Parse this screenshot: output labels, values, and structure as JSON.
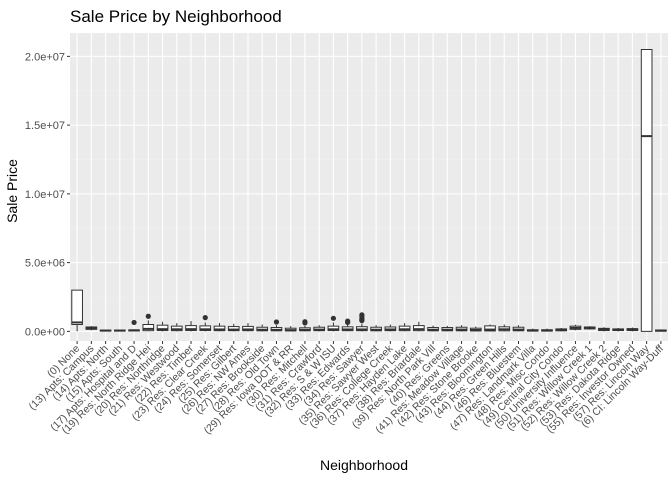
{
  "chart_data": {
    "type": "boxplot",
    "title": "Sale Price by Neighborhood",
    "xlabel": "Neighborhood",
    "ylabel": "Sale Price",
    "ylim": [
      -700000,
      21700000
    ],
    "y_ticks": [
      0,
      5000000,
      10000000,
      15000000,
      20000000
    ],
    "y_tick_labels": [
      "0.0e+00",
      "5.0e+06",
      "1.0e+07",
      "1.5e+07",
      "2.0e+07"
    ],
    "grid": true,
    "legend": "none",
    "categories": [
      "(0) None",
      "(13) Apts: Campus",
      "(14) Apts: North",
      "(15) Apts: South",
      "(17) Apts: Hospital and D",
      "(19) Res: North Ridge Hei",
      "(20) Res: Northridge",
      "(21) Res: Westwood",
      "(22) Res: Timber",
      "(23) Res: Clear Creek",
      "(24) Res: Somerset",
      "(25) Res: Gilbert",
      "(26) Res: NW Ames",
      "(27) Res: Brookside",
      "(28) Res: Old Town",
      "(29) Res: Iowa DOT & RR",
      "(30) Res: Mitchell",
      "(31) Res: Crawford",
      "(32) Res: S & W ISU",
      "(33) Res: Edwards",
      "(34) Res: Sawyer",
      "(35) Res: Sawyer West",
      "(36) Res: College Creek",
      "(37) Res: Hayden Lake",
      "(38) Res: Briardale",
      "(39) Res: North Park Vill",
      "(40) Res: Greens",
      "(41) Res: Meadow Village",
      "(42) Res: Stone Brooke",
      "(43) Res: Bloomington",
      "(44) Res: Green Hills",
      "(46) Res: Bluestem",
      "(47) Res: Landmark Villa",
      "(48) Res: Misc Condo",
      "(49) Central City Condo",
      "(50) University Influence",
      "(51) Res: Willow Creek 1",
      "(52) Res: Willow Creek 2",
      "(53) Res: Dakota Ridge",
      "(55) Res: Investor Owned",
      "(57) Res: Lincoln Way",
      "(6) CI: Lincoln Way-Duff"
    ],
    "boxes": [
      {
        "q1": 500000,
        "median": 650000,
        "q3": 3000000,
        "whisker_low": 0,
        "whisker_high": 3000000,
        "outliers": []
      },
      {
        "q1": 150000,
        "median": 240000,
        "q3": 320000,
        "whisker_low": 80000,
        "whisker_high": 380000,
        "outliers": []
      },
      {
        "q1": 20000,
        "median": 60000,
        "q3": 90000,
        "whisker_low": 0,
        "whisker_high": 120000,
        "outliers": []
      },
      {
        "q1": 20000,
        "median": 60000,
        "q3": 90000,
        "whisker_low": 0,
        "whisker_high": 120000,
        "outliers": []
      },
      {
        "q1": 30000,
        "median": 80000,
        "q3": 100000,
        "whisker_low": 10000,
        "whisker_high": 150000,
        "outliers": [
          650000
        ]
      },
      {
        "q1": 50000,
        "median": 180000,
        "q3": 500000,
        "whisker_low": 0,
        "whisker_high": 800000,
        "outliers": [
          1100000
        ]
      },
      {
        "q1": 60000,
        "median": 160000,
        "q3": 450000,
        "whisker_low": 0,
        "whisker_high": 700000,
        "outliers": []
      },
      {
        "q1": 50000,
        "median": 150000,
        "q3": 380000,
        "whisker_low": 0,
        "whisker_high": 600000,
        "outliers": []
      },
      {
        "q1": 60000,
        "median": 160000,
        "q3": 420000,
        "whisker_low": 0,
        "whisker_high": 750000,
        "outliers": []
      },
      {
        "q1": 60000,
        "median": 150000,
        "q3": 400000,
        "whisker_low": 0,
        "whisker_high": 650000,
        "outliers": [
          1000000
        ]
      },
      {
        "q1": 50000,
        "median": 140000,
        "q3": 380000,
        "whisker_low": 0,
        "whisker_high": 600000,
        "outliers": []
      },
      {
        "q1": 50000,
        "median": 130000,
        "q3": 350000,
        "whisker_low": 0,
        "whisker_high": 550000,
        "outliers": []
      },
      {
        "q1": 50000,
        "median": 140000,
        "q3": 360000,
        "whisker_low": 0,
        "whisker_high": 600000,
        "outliers": []
      },
      {
        "q1": 40000,
        "median": 120000,
        "q3": 300000,
        "whisker_low": 0,
        "whisker_high": 500000,
        "outliers": []
      },
      {
        "q1": 40000,
        "median": 110000,
        "q3": 280000,
        "whisker_low": 0,
        "whisker_high": 450000,
        "outliers": [
          680000
        ]
      },
      {
        "q1": 30000,
        "median": 90000,
        "q3": 230000,
        "whisker_low": 0,
        "whisker_high": 380000,
        "outliers": []
      },
      {
        "q1": 40000,
        "median": 110000,
        "q3": 260000,
        "whisker_low": 0,
        "whisker_high": 400000,
        "outliers": [
          620000,
          700000
        ]
      },
      {
        "q1": 50000,
        "median": 130000,
        "q3": 300000,
        "whisker_low": 0,
        "whisker_high": 450000,
        "outliers": []
      },
      {
        "q1": 60000,
        "median": 150000,
        "q3": 380000,
        "whisker_low": 0,
        "whisker_high": 650000,
        "outliers": [
          950000
        ]
      },
      {
        "q1": 50000,
        "median": 140000,
        "q3": 330000,
        "whisker_low": 0,
        "whisker_high": 500000,
        "outliers": [
          650000,
          750000
        ]
      },
      {
        "q1": 50000,
        "median": 140000,
        "q3": 340000,
        "whisker_low": 0,
        "whisker_high": 550000,
        "outliers": [
          780000,
          850000,
          950000,
          1100000,
          1200000
        ]
      },
      {
        "q1": 40000,
        "median": 120000,
        "q3": 300000,
        "whisker_low": 0,
        "whisker_high": 450000,
        "outliers": []
      },
      {
        "q1": 50000,
        "median": 140000,
        "q3": 320000,
        "whisker_low": 0,
        "whisker_high": 500000,
        "outliers": []
      },
      {
        "q1": 50000,
        "median": 150000,
        "q3": 380000,
        "whisker_low": 0,
        "whisker_high": 600000,
        "outliers": []
      },
      {
        "q1": 50000,
        "median": 160000,
        "q3": 420000,
        "whisker_low": 0,
        "whisker_high": 700000,
        "outliers": []
      },
      {
        "q1": 40000,
        "median": 120000,
        "q3": 280000,
        "whisker_low": 0,
        "whisker_high": 420000,
        "outliers": []
      },
      {
        "q1": 40000,
        "median": 120000,
        "q3": 280000,
        "whisker_low": 0,
        "whisker_high": 400000,
        "outliers": []
      },
      {
        "q1": 40000,
        "median": 130000,
        "q3": 300000,
        "whisker_low": 0,
        "whisker_high": 450000,
        "outliers": []
      },
      {
        "q1": 30000,
        "median": 100000,
        "q3": 230000,
        "whisker_low": 0,
        "whisker_high": 350000,
        "outliers": []
      },
      {
        "q1": 30000,
        "median": 130000,
        "q3": 400000,
        "whisker_low": 0,
        "whisker_high": 500000,
        "outliers": []
      },
      {
        "q1": 40000,
        "median": 150000,
        "q3": 330000,
        "whisker_low": 0,
        "whisker_high": 500000,
        "outliers": []
      },
      {
        "q1": 40000,
        "median": 130000,
        "q3": 300000,
        "whisker_low": 0,
        "whisker_high": 450000,
        "outliers": []
      },
      {
        "q1": 20000,
        "median": 60000,
        "q3": 120000,
        "whisker_low": 0,
        "whisker_high": 200000,
        "outliers": []
      },
      {
        "q1": 20000,
        "median": 60000,
        "q3": 120000,
        "whisker_low": 0,
        "whisker_high": 200000,
        "outliers": []
      },
      {
        "q1": 40000,
        "median": 100000,
        "q3": 180000,
        "whisker_low": 0,
        "whisker_high": 250000,
        "outliers": []
      },
      {
        "q1": 150000,
        "median": 250000,
        "q3": 380000,
        "whisker_low": 80000,
        "whisker_high": 480000,
        "outliers": []
      },
      {
        "q1": 180000,
        "median": 260000,
        "q3": 320000,
        "whisker_low": 120000,
        "whisker_high": 380000,
        "outliers": []
      },
      {
        "q1": 60000,
        "median": 150000,
        "q3": 220000,
        "whisker_low": 0,
        "whisker_high": 300000,
        "outliers": []
      },
      {
        "q1": 60000,
        "median": 130000,
        "q3": 180000,
        "whisker_low": 0,
        "whisker_high": 250000,
        "outliers": []
      },
      {
        "q1": 60000,
        "median": 140000,
        "q3": 200000,
        "whisker_low": 0,
        "whisker_high": 280000,
        "outliers": []
      },
      {
        "q1": 0,
        "median": 14200000,
        "q3": 20500000,
        "whisker_low": 0,
        "whisker_high": 20500000,
        "outliers": []
      },
      {
        "q1": 10000,
        "median": 60000,
        "q3": 100000,
        "whisker_low": 0,
        "whisker_high": 150000,
        "outliers": []
      }
    ],
    "colors": {
      "panel_background": "#ebebeb",
      "grid_major": "#ffffff",
      "grid_minor": "#f2f2f2",
      "box_fill": "#ffffff",
      "box_line": "#333333",
      "outlier": "#333333"
    }
  }
}
